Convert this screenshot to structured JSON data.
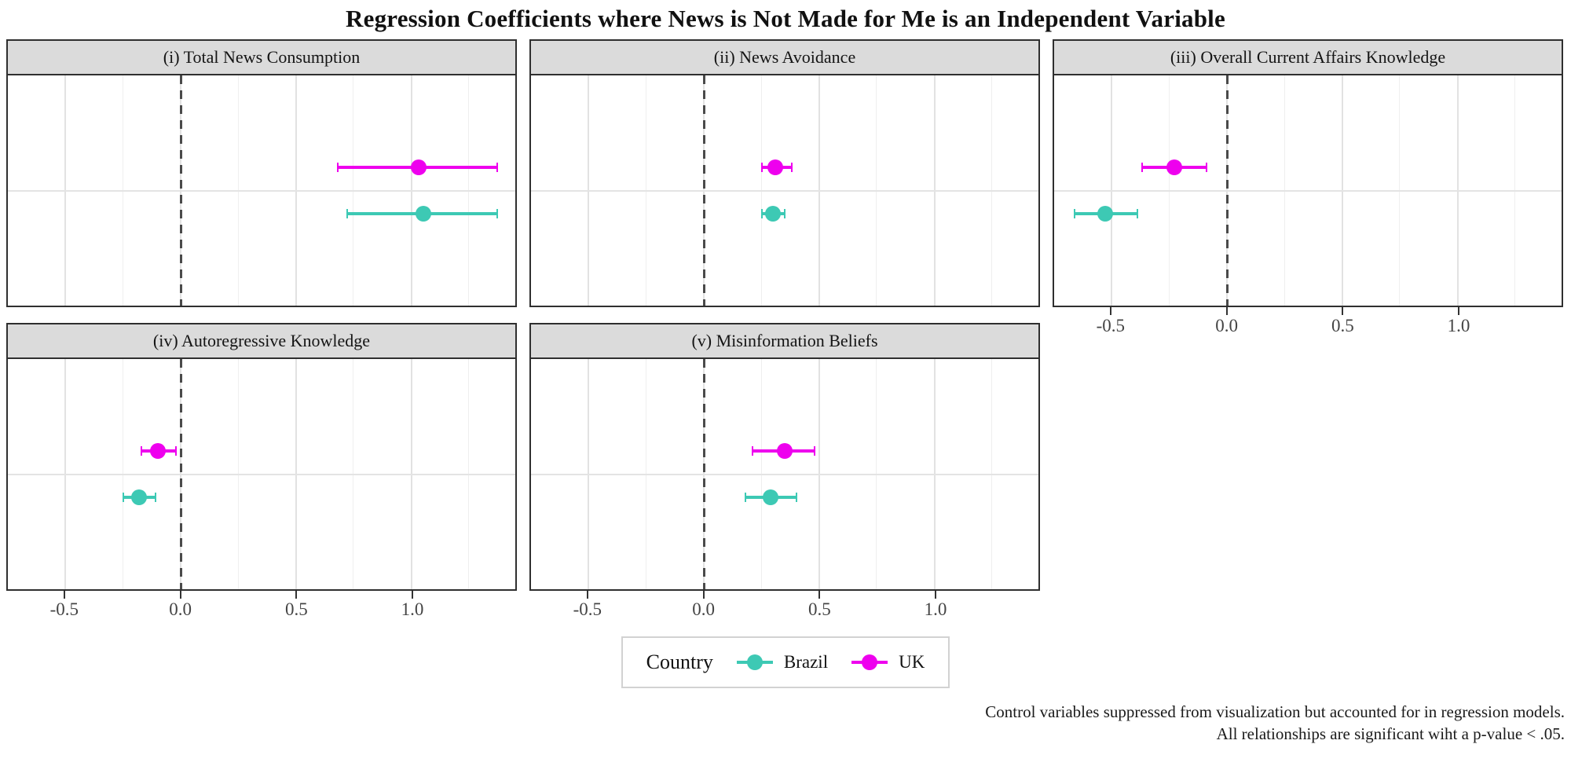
{
  "title": "Regression Coefficients where News is Not Made for Me is an Independent Variable",
  "legend": {
    "title": "Country",
    "items": [
      {
        "label": "Brazil",
        "color": "#3DC9B4"
      },
      {
        "label": "UK",
        "color": "#EE00EE"
      }
    ]
  },
  "caption": {
    "line1": "Control variables suppressed from visualization but accounted for in regression models.",
    "line2": "All relationships are significant wiht a p-value < .05."
  },
  "colors": {
    "brazil": "#3DC9B4",
    "uk": "#EE00EE",
    "strip_background": "#DBDBDB",
    "panel_border": "#2F2F2F",
    "major_gridline": "#E2E2E2",
    "minor_gridline": "#EFEFEF",
    "zero_line": "#4A4A4A"
  },
  "chart_data": {
    "type": "scatter",
    "subtype": "coefficient-dot-whisker",
    "title": "Regression Coefficients where News is Not Made for Me is an Independent Variable",
    "xlabel": "",
    "ylabel": "",
    "grid": true,
    "legend_position": "bottom",
    "x_axis": {
      "range": [
        -0.75,
        1.45
      ],
      "ticks": [
        -0.5,
        0.0,
        0.5,
        1.0
      ],
      "tick_labels": [
        "-0.5",
        "0.0",
        "0.5",
        "1.0"
      ],
      "minor_step": 0.25,
      "zero_reference_line": 0
    },
    "y_layout": {
      "UK": 0.4,
      "Brazil": 0.6,
      "mid_gridline": 0.5
    },
    "series": [
      {
        "name": "Brazil",
        "color": "#3DC9B4"
      },
      {
        "name": "UK",
        "color": "#EE00EE"
      }
    ],
    "facets": [
      {
        "label": "(i) Total News Consumption",
        "grid": {
          "row": 1,
          "col": 1
        },
        "show_x_axis": false,
        "points": [
          {
            "country": "UK",
            "estimate": 1.03,
            "ci_low": 0.68,
            "ci_high": 1.37
          },
          {
            "country": "Brazil",
            "estimate": 1.05,
            "ci_low": 0.72,
            "ci_high": 1.37
          }
        ]
      },
      {
        "label": "(ii) News Avoidance",
        "grid": {
          "row": 1,
          "col": 2
        },
        "show_x_axis": false,
        "points": [
          {
            "country": "UK",
            "estimate": 0.31,
            "ci_low": 0.25,
            "ci_high": 0.38
          },
          {
            "country": "Brazil",
            "estimate": 0.3,
            "ci_low": 0.25,
            "ci_high": 0.35
          }
        ]
      },
      {
        "label": "(iii) Overall Current Affairs Knowledge",
        "grid": {
          "row": 1,
          "col": 3
        },
        "show_x_axis": true,
        "points": [
          {
            "country": "UK",
            "estimate": -0.23,
            "ci_low": -0.37,
            "ci_high": -0.09
          },
          {
            "country": "Brazil",
            "estimate": -0.53,
            "ci_low": -0.66,
            "ci_high": -0.39
          }
        ]
      },
      {
        "label": "(iv) Autoregressive Knowledge",
        "grid": {
          "row": 2,
          "col": 1
        },
        "show_x_axis": true,
        "points": [
          {
            "country": "UK",
            "estimate": -0.1,
            "ci_low": -0.17,
            "ci_high": -0.02
          },
          {
            "country": "Brazil",
            "estimate": -0.18,
            "ci_low": -0.25,
            "ci_high": -0.11
          }
        ]
      },
      {
        "label": "(v) Misinformation Beliefs",
        "grid": {
          "row": 2,
          "col": 2
        },
        "show_x_axis": true,
        "points": [
          {
            "country": "UK",
            "estimate": 0.35,
            "ci_low": 0.21,
            "ci_high": 0.48
          },
          {
            "country": "Brazil",
            "estimate": 0.29,
            "ci_low": 0.18,
            "ci_high": 0.4
          }
        ]
      }
    ]
  }
}
